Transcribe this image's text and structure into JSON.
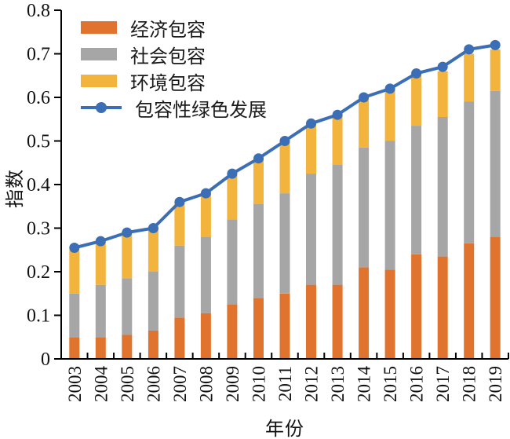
{
  "figure": {
    "background": "#ffffff",
    "axis_color": "#000000",
    "text_color": "#1a1a1a"
  },
  "chart_data": {
    "type": "stacked-bar-with-line",
    "title": "",
    "xlabel": "年份",
    "ylabel": "指数",
    "ylim": [
      0,
      0.8
    ],
    "ytick_labels": [
      "0",
      "0.1",
      "0.2",
      "0.3",
      "0.4",
      "0.5",
      "0.6",
      "0.7",
      "0.8"
    ],
    "grid": false,
    "legend_position": "upper-left-inside",
    "categories": [
      "2003",
      "2004",
      "2005",
      "2006",
      "2007",
      "2008",
      "2009",
      "2010",
      "2011",
      "2012",
      "2013",
      "2014",
      "2015",
      "2016",
      "2017",
      "2018",
      "2019"
    ],
    "series": [
      {
        "key": "economic-inclusion",
        "name": "经济包容",
        "kind": "bar",
        "color": "#E0742E",
        "values": [
          0.05,
          0.05,
          0.055,
          0.065,
          0.095,
          0.105,
          0.125,
          0.14,
          0.15,
          0.17,
          0.17,
          0.21,
          0.205,
          0.24,
          0.235,
          0.265,
          0.28
        ]
      },
      {
        "key": "social-inclusion",
        "name": "社会包容",
        "kind": "bar",
        "color": "#A6A6A6",
        "values": [
          0.1,
          0.12,
          0.13,
          0.135,
          0.165,
          0.175,
          0.195,
          0.215,
          0.23,
          0.255,
          0.275,
          0.275,
          0.295,
          0.295,
          0.32,
          0.325,
          0.335
        ]
      },
      {
        "key": "environmental-inclusion",
        "name": "环境包容",
        "kind": "bar",
        "color": "#F2B43C",
        "values": [
          0.1,
          0.1,
          0.1,
          0.1,
          0.1,
          0.1,
          0.105,
          0.105,
          0.12,
          0.115,
          0.115,
          0.115,
          0.12,
          0.12,
          0.105,
          0.11,
          0.095
        ]
      },
      {
        "key": "inclusive-green-development",
        "name": "包容性绿色发展",
        "kind": "line",
        "color": "#3C6EB5",
        "values": [
          0.255,
          0.27,
          0.29,
          0.3,
          0.36,
          0.38,
          0.425,
          0.46,
          0.5,
          0.54,
          0.56,
          0.6,
          0.62,
          0.655,
          0.67,
          0.71,
          0.72
        ]
      }
    ]
  }
}
